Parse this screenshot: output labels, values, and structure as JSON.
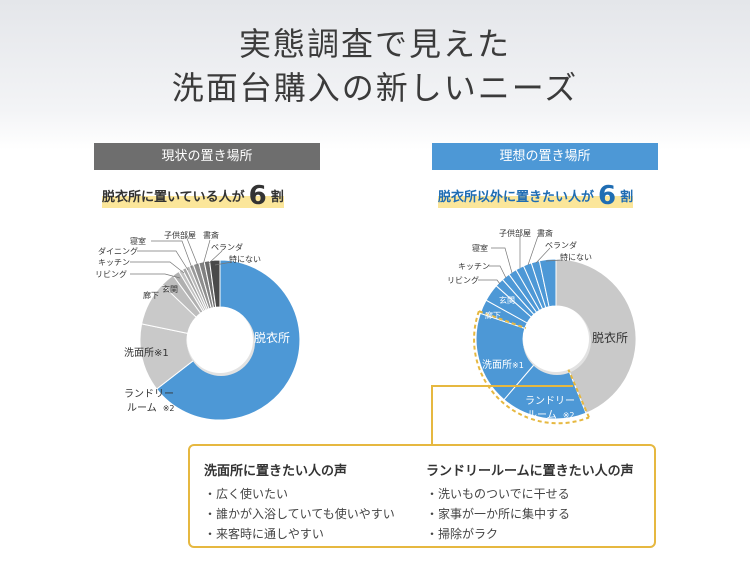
{
  "title": {
    "line1": "実態調査で見えた",
    "line2": "洗面台購入の新しいニーズ"
  },
  "left": {
    "tag": "現状の置き場所",
    "stat_pre": "脱衣所に置いている人が",
    "stat_num": "6",
    "stat_post": "割",
    "labels": {
      "datsuijo": "脱衣所",
      "senmenjo": "洗面所※1",
      "laundry1": "ランドリー",
      "laundry2": "ルーム",
      "note2": "※2",
      "rouka": "廊下",
      "genkan": "玄関",
      "living": "リビング",
      "kitchen": "キッチン",
      "dining": "ダイニング",
      "shinshitsu": "寝室",
      "kodomo": "子供部屋",
      "shosai": "書斎",
      "veranda": "ベランダ",
      "tokuninai": "特にない"
    }
  },
  "right": {
    "tag": "理想の置き場所",
    "stat_pre": "脱衣所以外に置きたい人が",
    "stat_num": "6",
    "stat_post": "割",
    "labels": {
      "datsuijo": "脱衣所",
      "senmenjo": "洗面所",
      "note1": "※1",
      "laundry1": "ランドリー",
      "laundry2": "ルーム",
      "note2": "※2",
      "rouka": "廊下",
      "genkan": "玄関",
      "living": "リビング",
      "kitchen": "キッチン",
      "shinshitsu": "寝室",
      "kodomo": "子供部屋",
      "shosai": "書斎",
      "veranda": "ベランダ",
      "tokuninai": "特にない"
    }
  },
  "voices": {
    "senmenjo": {
      "head": "洗面所に置きたい人の声",
      "items": [
        "広く使いたい",
        "誰かが入浴していても使いやすい",
        "来客時に通しやすい"
      ]
    },
    "laundry": {
      "head": "ランドリールームに置きたい人の声",
      "items": [
        "洗いものついでに干せる",
        "家事が一か所に集中する",
        "掃除がラク"
      ]
    }
  },
  "colors": {
    "blue": "#4d98d6",
    "gray": "#c9c9c9",
    "dark_gray": "#6e6e6e",
    "yellow": "#e6b840",
    "highlight": "#fbe69a"
  }
}
